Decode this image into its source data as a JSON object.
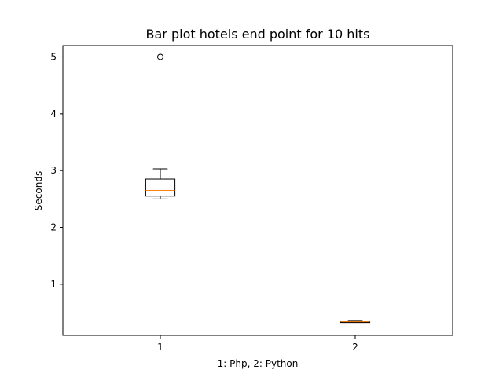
{
  "chart_data": {
    "type": "box",
    "title": "Bar plot hotels end point for 10 hits",
    "xlabel": "1: Php, 2: Python",
    "ylabel": "Seconds",
    "ylim": [
      0.1,
      5.2
    ],
    "yticks": [
      1,
      2,
      3,
      4,
      5
    ],
    "categories": [
      "1",
      "2"
    ],
    "boxes": [
      {
        "category": "1",
        "whisker_low": 2.5,
        "q1": 2.55,
        "median": 2.65,
        "q3": 2.85,
        "whisker_high": 3.03,
        "outliers": [
          5.0
        ]
      },
      {
        "category": "2",
        "whisker_low": 0.33,
        "q1": 0.33,
        "median": 0.34,
        "q3": 0.34,
        "whisker_high": 0.35,
        "outliers": []
      }
    ],
    "colors": {
      "box": "#000000",
      "median": "#ff7f0e"
    },
    "grid": false,
    "legend": "none"
  }
}
